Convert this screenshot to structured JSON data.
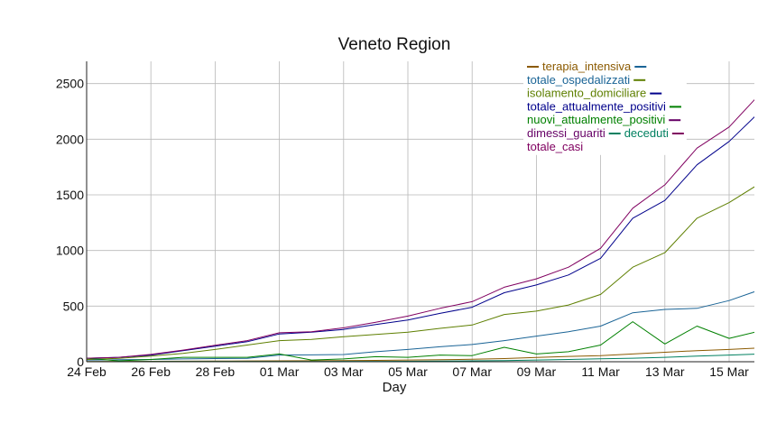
{
  "chart_data": {
    "type": "line",
    "title": "Veneto Region",
    "xlabel": "Day",
    "ylabel": "",
    "x": [
      "24 Feb",
      "25 Feb",
      "26 Feb",
      "27 Feb",
      "28 Feb",
      "29 Feb",
      "01 Mar",
      "02 Mar",
      "03 Mar",
      "04 Mar",
      "05 Mar",
      "06 Mar",
      "07 Mar",
      "08 Mar",
      "09 Mar",
      "10 Mar",
      "11 Mar",
      "12 Mar",
      "13 Mar",
      "14 Mar",
      "15 Mar",
      "16 Mar"
    ],
    "x_tick_labels": [
      "24 Feb",
      "26 Feb",
      "28 Feb",
      "01 Mar",
      "03 Mar",
      "05 Mar",
      "07 Mar",
      "09 Mar",
      "11 Mar",
      "13 Mar",
      "15 Mar"
    ],
    "ylim": [
      0,
      2700
    ],
    "y_ticks": [
      0,
      500,
      1000,
      1500,
      2000,
      2500
    ],
    "grid": true,
    "legend_position": "top-right",
    "series": [
      {
        "name": "terapia_intensiva",
        "color": "#8b5a00",
        "values": [
          2,
          3,
          4,
          5,
          6,
          7,
          8,
          9,
          10,
          12,
          15,
          18,
          22,
          28,
          38,
          48,
          55,
          70,
          85,
          100,
          110,
          125
        ]
      },
      {
        "name": "totale_ospedalizzati",
        "color": "#1a6496",
        "values": [
          15,
          18,
          20,
          25,
          28,
          30,
          60,
          62,
          65,
          90,
          110,
          135,
          155,
          190,
          230,
          270,
          320,
          440,
          470,
          480,
          550,
          650
        ]
      },
      {
        "name": "isolamento_domiciliare",
        "color": "#5e7f00",
        "values": [
          20,
          30,
          50,
          75,
          110,
          150,
          190,
          200,
          225,
          245,
          265,
          300,
          330,
          425,
          455,
          510,
          605,
          850,
          980,
          1290,
          1430,
          1610
        ]
      },
      {
        "name": "totale_attualmente_positivi",
        "color": "#00008b",
        "values": [
          32,
          40,
          60,
          100,
          140,
          180,
          250,
          265,
          290,
          335,
          375,
          435,
          490,
          620,
          690,
          780,
          930,
          1290,
          1450,
          1770,
          1980,
          2260
        ]
      },
      {
        "name": "nuovi_attualmente_positivi",
        "color": "#008000",
        "values": [
          32,
          8,
          20,
          40,
          40,
          40,
          70,
          15,
          25,
          45,
          40,
          60,
          55,
          130,
          70,
          90,
          150,
          360,
          160,
          320,
          210,
          280
        ]
      },
      {
        "name": "dimessi_guariti",
        "color": "#660066",
        "values": [
          0,
          0,
          0,
          0,
          0,
          0,
          0,
          0,
          0,
          0,
          0,
          0,
          0,
          0,
          0,
          0,
          0,
          0,
          0,
          0,
          0,
          0
        ]
      },
      {
        "name": "deceduti",
        "color": "#008060",
        "values": [
          1,
          1,
          2,
          2,
          2,
          2,
          2,
          2,
          3,
          3,
          4,
          6,
          8,
          10,
          15,
          20,
          26,
          32,
          40,
          50,
          60,
          70
        ]
      },
      {
        "name": "totale_casi",
        "color": "#800060",
        "values": [
          32,
          40,
          66,
          105,
          148,
          190,
          260,
          270,
          305,
          355,
          410,
          480,
          540,
          670,
          745,
          850,
          1020,
          1380,
          1590,
          1920,
          2110,
          2420
        ]
      }
    ]
  }
}
